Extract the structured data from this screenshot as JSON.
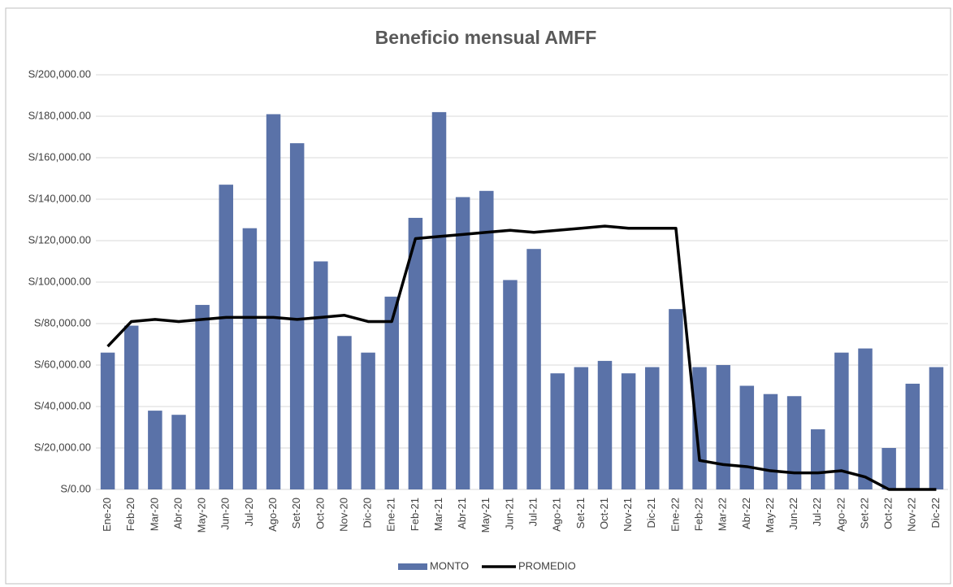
{
  "chart_data": {
    "type": "bar",
    "title": "Beneficio mensual AMFF",
    "categories": [
      "Ene-20",
      "Feb-20",
      "Mar-20",
      "Abr-20",
      "May-20",
      "Jun-20",
      "Jul-20",
      "Ago-20",
      "Set-20",
      "Oct-20",
      "Nov-20",
      "Dic-20",
      "Ene-21",
      "Feb-21",
      "Mar-21",
      "Abr-21",
      "May-21",
      "Jun-21",
      "Jul-21",
      "Ago-21",
      "Set-21",
      "Oct-21",
      "Nov-21",
      "Dic-21",
      "Ene-22",
      "Feb-22",
      "Mar-22",
      "Abr-22",
      "May-22",
      "Jun-22",
      "Jul-22",
      "Ago-22",
      "Set-22",
      "Oct-22",
      "Nov-22",
      "Dic-22"
    ],
    "series": [
      {
        "name": "MONTO",
        "type": "bar",
        "color": "#5a72a8",
        "values": [
          66000,
          79000,
          38000,
          36000,
          89000,
          147000,
          126000,
          181000,
          167000,
          110000,
          74000,
          66000,
          93000,
          131000,
          182000,
          141000,
          144000,
          101000,
          116000,
          56000,
          59000,
          62000,
          56000,
          59000,
          87000,
          59000,
          60000,
          50000,
          46000,
          45000,
          29000,
          66000,
          68000,
          20000,
          51000,
          59000
        ]
      },
      {
        "name": "PROMEDIO",
        "type": "line",
        "color": "#000000",
        "values": [
          69000,
          81000,
          82000,
          81000,
          82000,
          83000,
          83000,
          83000,
          82000,
          83000,
          84000,
          81000,
          81000,
          121000,
          122000,
          123000,
          124000,
          125000,
          124000,
          125000,
          126000,
          127000,
          126000,
          126000,
          126000,
          14000,
          12000,
          11000,
          9000,
          8000,
          8000,
          9000,
          6000,
          0,
          0,
          0
        ]
      }
    ],
    "ylim": [
      0,
      200000
    ],
    "yticks": [
      {
        "value": 0,
        "label": "S/0.00"
      },
      {
        "value": 20000,
        "label": "S/20,000.00"
      },
      {
        "value": 40000,
        "label": "S/40,000.00"
      },
      {
        "value": 60000,
        "label": "S/60,000.00"
      },
      {
        "value": 80000,
        "label": "S/80,000.00"
      },
      {
        "value": 100000,
        "label": "S/100,000.00"
      },
      {
        "value": 120000,
        "label": "S/120,000.00"
      },
      {
        "value": 140000,
        "label": "S/140,000.00"
      },
      {
        "value": 160000,
        "label": "S/160,000.00"
      },
      {
        "value": 180000,
        "label": "S/180,000.00"
      },
      {
        "value": 200000,
        "label": "S/200,000.00"
      }
    ],
    "grid": true,
    "legend": "bottom"
  }
}
